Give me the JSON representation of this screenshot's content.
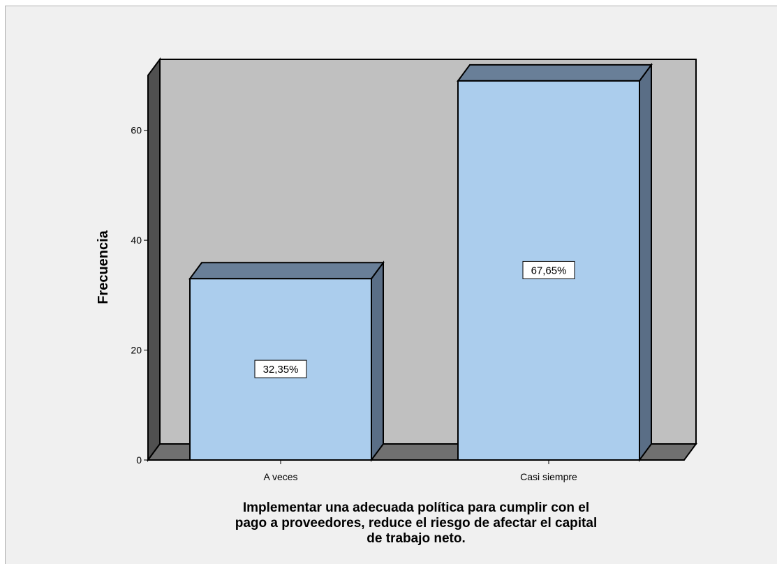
{
  "chart_data": {
    "type": "bar",
    "categories": [
      "A veces",
      "Casi siempre"
    ],
    "values": [
      33,
      69
    ],
    "data_labels": [
      "32,35%",
      "67,65%"
    ],
    "xlabel_lines": [
      "Implementar una adecuada política para cumplir con el",
      "pago a proveedores, reduce el riesgo de afectar el capital",
      "de trabajo neto."
    ],
    "ylabel": "Frecuencia",
    "yticks": [
      0,
      20,
      40,
      60
    ],
    "ylim": [
      0,
      70
    ],
    "grid": false,
    "style": "3d",
    "colors": {
      "bar_face": "#abcded",
      "bar_top": "#697f98",
      "bar_side": "#5a6e86",
      "back_wall": "#c0c0c0",
      "left_wall": "#505050",
      "floor": "#707070",
      "frame_bg": "#f0f0f0"
    }
  }
}
